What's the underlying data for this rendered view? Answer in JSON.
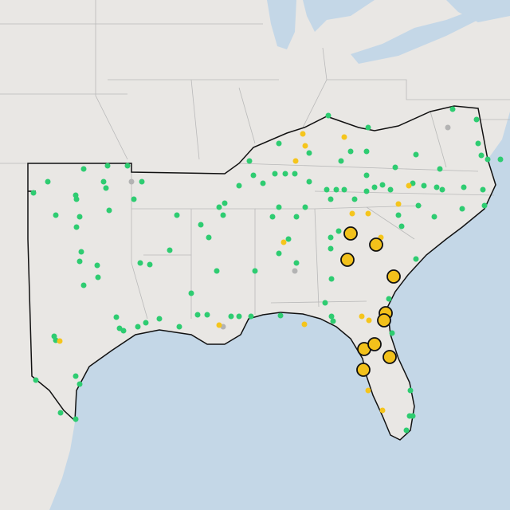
{
  "map": {
    "colors": {
      "land": "#e9e7e4",
      "water": "#c4d7e7",
      "border": "#b9b9b9",
      "outline": "#111111",
      "site": "#2ecc71",
      "alert": "#f5c51c",
      "inactive": "#b3b3b3",
      "major": "#f2c11b"
    }
  }
}
